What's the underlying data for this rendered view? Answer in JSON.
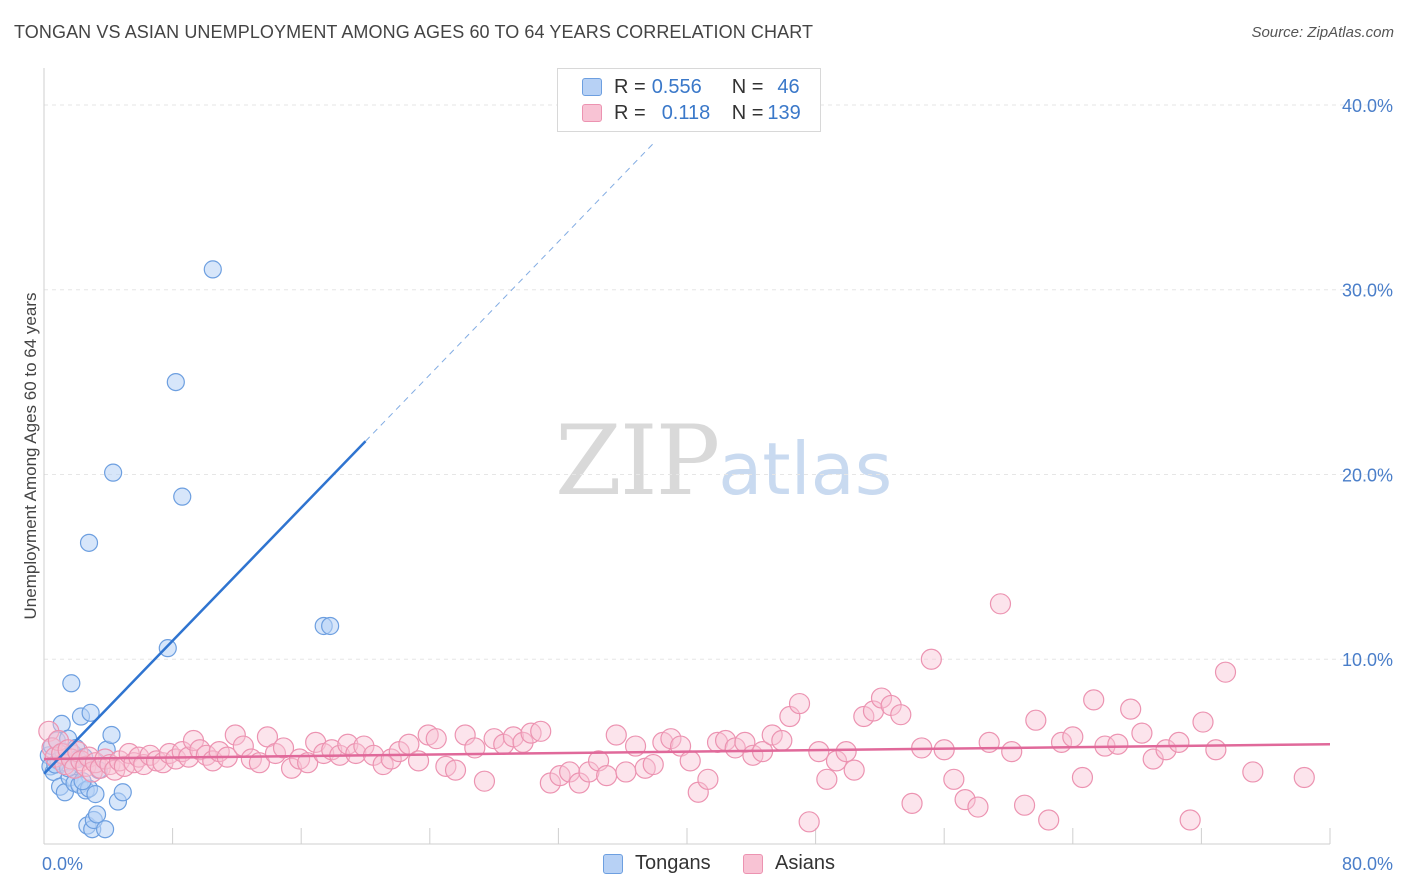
{
  "header": {
    "title": "TONGAN VS ASIAN UNEMPLOYMENT AMONG AGES 60 TO 64 YEARS CORRELATION CHART",
    "source": "Source: ZipAtlas.com"
  },
  "watermark": {
    "zip": "ZIP",
    "atlas": "atlas"
  },
  "legend": {
    "rows": [
      {
        "r_label": "R = ",
        "r_value": "0.556",
        "n_label": "N = ",
        "n_value": "46"
      },
      {
        "r_label": "R = ",
        "r_value": "0.118",
        "n_label": "N = ",
        "n_value": "139"
      }
    ]
  },
  "colors": {
    "tongan_fill": "#b7d1f5",
    "tongan_stroke": "#6d9fe0",
    "tongan_line": "#2f74d0",
    "asian_fill": "#f8c3d4",
    "asian_stroke": "#ec93b1",
    "asian_line": "#e0699a",
    "tick_label": "#4a7ec9",
    "grid": "#e6e6e6"
  },
  "chart_data": {
    "type": "scatter",
    "title": "TONGAN VS ASIAN UNEMPLOYMENT AMONG AGES 60 TO 64 YEARS CORRELATION CHART",
    "xlabel": "",
    "ylabel": "Unemployment Among Ages 60 to 64 years",
    "xlim": [
      0,
      80
    ],
    "ylim": [
      0,
      42
    ],
    "x_tick_labels": [
      "0.0%",
      "80.0%"
    ],
    "y_ticks": [
      10,
      20,
      30,
      40
    ],
    "y_tick_labels": [
      "10.0%",
      "20.0%",
      "30.0%",
      "40.0%"
    ],
    "legend_position": "bottom",
    "series": [
      {
        "name": "Tongans",
        "r": 0.556,
        "n": 46,
        "trend": {
          "x0": 0,
          "y0": 3.8,
          "x1": 20,
          "y1": 21.8,
          "x_dash_end": 38,
          "y_dash_end": 38.0
        },
        "points": [
          [
            0.3,
            4.8
          ],
          [
            0.4,
            4.2
          ],
          [
            0.5,
            5.3
          ],
          [
            0.6,
            3.9
          ],
          [
            0.8,
            5.6
          ],
          [
            0.9,
            4.5
          ],
          [
            1.0,
            3.1
          ],
          [
            1.1,
            6.5
          ],
          [
            1.2,
            5.0
          ],
          [
            1.3,
            2.8
          ],
          [
            1.4,
            4.4
          ],
          [
            1.5,
            5.7
          ],
          [
            1.6,
            3.6
          ],
          [
            1.7,
            8.7
          ],
          [
            1.8,
            4.9
          ],
          [
            1.9,
            3.3
          ],
          [
            2.0,
            5.2
          ],
          [
            2.1,
            4.6
          ],
          [
            2.2,
            3.2
          ],
          [
            2.3,
            6.9
          ],
          [
            2.5,
            4.7
          ],
          [
            2.6,
            2.9
          ],
          [
            2.7,
            1.0
          ],
          [
            2.8,
            3.0
          ],
          [
            2.9,
            7.1
          ],
          [
            3.0,
            0.8
          ],
          [
            3.1,
            1.3
          ],
          [
            3.2,
            2.7
          ],
          [
            3.3,
            1.6
          ],
          [
            3.4,
            4.0
          ],
          [
            3.8,
            0.8
          ],
          [
            3.9,
            5.1
          ],
          [
            4.2,
            5.9
          ],
          [
            4.3,
            20.1
          ],
          [
            4.6,
            2.3
          ],
          [
            4.9,
            2.8
          ],
          [
            7.7,
            10.6
          ],
          [
            8.2,
            25.0
          ],
          [
            8.6,
            18.8
          ],
          [
            10.5,
            31.1
          ],
          [
            2.8,
            16.3
          ],
          [
            17.4,
            11.8
          ],
          [
            17.8,
            11.8
          ],
          [
            0.7,
            4.3
          ],
          [
            1.5,
            4.1
          ],
          [
            2.4,
            3.4
          ]
        ]
      },
      {
        "name": "Asians",
        "r": 0.118,
        "n": 139,
        "trend": {
          "x0": 0,
          "y0": 4.6,
          "x1": 80,
          "y1": 5.4
        },
        "points": [
          [
            0.3,
            6.1
          ],
          [
            0.5,
            5.2
          ],
          [
            0.7,
            4.7
          ],
          [
            0.9,
            5.6
          ],
          [
            1.1,
            4.9
          ],
          [
            1.3,
            4.3
          ],
          [
            1.5,
            5.1
          ],
          [
            1.7,
            4.6
          ],
          [
            1.9,
            4.1
          ],
          [
            2.1,
            5.0
          ],
          [
            2.3,
            4.5
          ],
          [
            2.6,
            4.2
          ],
          [
            2.8,
            4.7
          ],
          [
            3.0,
            3.9
          ],
          [
            3.2,
            4.4
          ],
          [
            3.5,
            4.1
          ],
          [
            3.8,
            4.6
          ],
          [
            4.1,
            4.3
          ],
          [
            4.4,
            4.0
          ],
          [
            4.7,
            4.5
          ],
          [
            5.0,
            4.2
          ],
          [
            5.3,
            4.9
          ],
          [
            5.6,
            4.4
          ],
          [
            5.9,
            4.7
          ],
          [
            6.2,
            4.3
          ],
          [
            6.6,
            4.8
          ],
          [
            7.0,
            4.5
          ],
          [
            7.4,
            4.4
          ],
          [
            7.8,
            4.9
          ],
          [
            8.2,
            4.6
          ],
          [
            8.6,
            5.0
          ],
          [
            9.0,
            4.7
          ],
          [
            9.3,
            5.6
          ],
          [
            9.7,
            5.1
          ],
          [
            10.1,
            4.8
          ],
          [
            10.5,
            4.5
          ],
          [
            10.9,
            5.0
          ],
          [
            11.4,
            4.7
          ],
          [
            11.9,
            5.9
          ],
          [
            12.4,
            5.3
          ],
          [
            12.9,
            4.6
          ],
          [
            13.4,
            4.4
          ],
          [
            13.9,
            5.8
          ],
          [
            14.4,
            4.9
          ],
          [
            14.9,
            5.2
          ],
          [
            15.4,
            4.1
          ],
          [
            15.9,
            4.6
          ],
          [
            16.4,
            4.4
          ],
          [
            16.9,
            5.5
          ],
          [
            17.4,
            4.9
          ],
          [
            17.9,
            5.1
          ],
          [
            18.4,
            4.8
          ],
          [
            18.9,
            5.4
          ],
          [
            19.4,
            4.9
          ],
          [
            19.9,
            5.3
          ],
          [
            20.5,
            4.8
          ],
          [
            21.1,
            4.3
          ],
          [
            21.6,
            4.6
          ],
          [
            22.1,
            5.0
          ],
          [
            22.7,
            5.4
          ],
          [
            23.3,
            4.5
          ],
          [
            23.9,
            5.9
          ],
          [
            24.4,
            5.7
          ],
          [
            25.0,
            4.2
          ],
          [
            25.6,
            4.0
          ],
          [
            26.2,
            5.9
          ],
          [
            26.8,
            5.2
          ],
          [
            27.4,
            3.4
          ],
          [
            28.0,
            5.7
          ],
          [
            28.6,
            5.4
          ],
          [
            29.2,
            5.8
          ],
          [
            29.8,
            5.5
          ],
          [
            30.3,
            6.0
          ],
          [
            30.9,
            6.1
          ],
          [
            31.5,
            3.3
          ],
          [
            32.1,
            3.7
          ],
          [
            32.7,
            3.9
          ],
          [
            33.3,
            3.3
          ],
          [
            33.9,
            3.9
          ],
          [
            34.5,
            4.5
          ],
          [
            35.0,
            3.7
          ],
          [
            35.6,
            5.9
          ],
          [
            36.2,
            3.9
          ],
          [
            36.8,
            5.3
          ],
          [
            37.4,
            4.1
          ],
          [
            37.9,
            4.3
          ],
          [
            38.5,
            5.5
          ],
          [
            39.0,
            5.7
          ],
          [
            39.6,
            5.3
          ],
          [
            40.2,
            4.5
          ],
          [
            40.7,
            2.8
          ],
          [
            41.3,
            3.5
          ],
          [
            41.9,
            5.5
          ],
          [
            42.4,
            5.6
          ],
          [
            43.0,
            5.2
          ],
          [
            43.6,
            5.5
          ],
          [
            44.1,
            4.8
          ],
          [
            44.7,
            5.0
          ],
          [
            45.3,
            5.9
          ],
          [
            45.9,
            5.6
          ],
          [
            46.4,
            6.9
          ],
          [
            47.0,
            7.6
          ],
          [
            47.6,
            1.2
          ],
          [
            48.2,
            5.0
          ],
          [
            48.7,
            3.5
          ],
          [
            49.3,
            4.5
          ],
          [
            49.9,
            5.0
          ],
          [
            50.4,
            4.0
          ],
          [
            51.0,
            6.9
          ],
          [
            51.6,
            7.2
          ],
          [
            52.1,
            7.9
          ],
          [
            52.7,
            7.5
          ],
          [
            53.3,
            7.0
          ],
          [
            54.0,
            2.2
          ],
          [
            54.6,
            5.2
          ],
          [
            55.2,
            10.0
          ],
          [
            56.0,
            5.1
          ],
          [
            56.6,
            3.5
          ],
          [
            57.3,
            2.4
          ],
          [
            58.1,
            2.0
          ],
          [
            58.8,
            5.5
          ],
          [
            59.5,
            13.0
          ],
          [
            60.2,
            5.0
          ],
          [
            61.0,
            2.1
          ],
          [
            61.7,
            6.7
          ],
          [
            62.5,
            1.3
          ],
          [
            63.3,
            5.5
          ],
          [
            64.0,
            5.8
          ],
          [
            64.6,
            3.6
          ],
          [
            65.3,
            7.8
          ],
          [
            66.0,
            5.3
          ],
          [
            66.8,
            5.4
          ],
          [
            67.6,
            7.3
          ],
          [
            68.3,
            6.0
          ],
          [
            69.0,
            4.6
          ],
          [
            69.8,
            5.1
          ],
          [
            70.6,
            5.5
          ],
          [
            71.3,
            1.3
          ],
          [
            72.1,
            6.6
          ],
          [
            72.9,
            5.1
          ],
          [
            73.5,
            9.3
          ],
          [
            75.2,
            3.9
          ],
          [
            78.4,
            3.6
          ]
        ]
      }
    ]
  },
  "bottom_legend": {
    "items": [
      {
        "label": "Tongans"
      },
      {
        "label": "Asians"
      }
    ]
  }
}
